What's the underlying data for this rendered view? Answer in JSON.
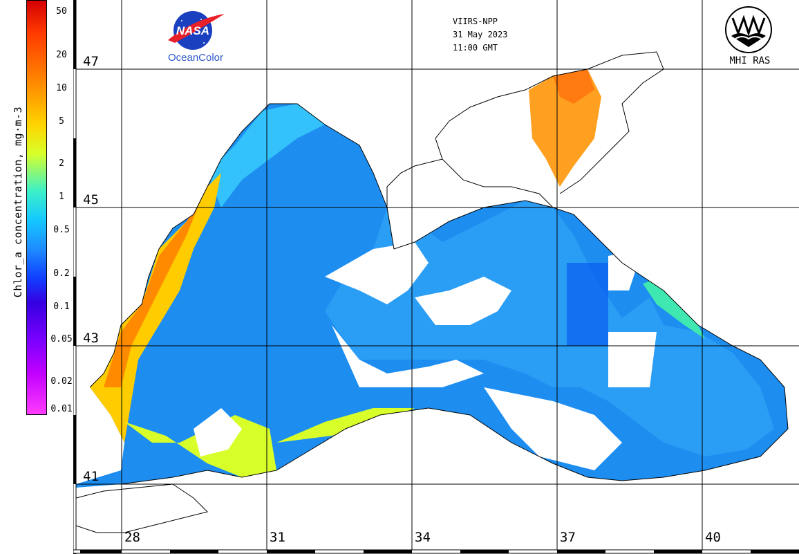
{
  "header": {
    "sensor": "VIIRS-NPP",
    "date": "31 May 2023",
    "time": "11:00 GMT"
  },
  "logos": {
    "nasa_text": "NASA",
    "nasa_word": "OceanColor",
    "mhi_word": "MHI RAS"
  },
  "colorbar": {
    "title": "Chlor_a concentration, mg·m-3",
    "ticks": [
      "50",
      "20",
      "10",
      "5",
      "2",
      "1",
      "0.5",
      "0.2",
      "0.1",
      "0.05",
      "0.02",
      "0.01"
    ]
  },
  "grid": {
    "lat_labels": [
      "47",
      "45",
      "43",
      "41"
    ],
    "lon_labels": [
      "28",
      "31",
      "34",
      "37",
      "40"
    ]
  }
}
